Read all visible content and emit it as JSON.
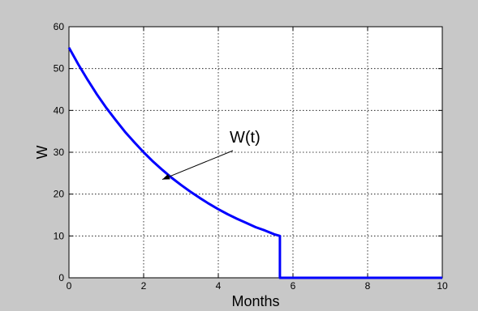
{
  "colors": {
    "figure_background": "#c8c8c8",
    "axes_background": "#ffffff",
    "series_line": "#0000ff",
    "grid": "#000000"
  },
  "chart_data": {
    "type": "line",
    "title": "",
    "xlabel": "Months",
    "ylabel": "W",
    "xlim": [
      0,
      10
    ],
    "ylim": [
      0,
      60
    ],
    "xticks": [
      "0",
      "2",
      "4",
      "6",
      "8",
      "10"
    ],
    "yticks": [
      "0",
      "10",
      "20",
      "30",
      "40",
      "50",
      "60"
    ],
    "grid": true,
    "grid_style": "dotted",
    "series": [
      {
        "color": "#0000ff",
        "points": [
          [
            0.0,
            55.0
          ],
          [
            0.25,
            51.0
          ],
          [
            0.5,
            47.3
          ],
          [
            0.75,
            43.8
          ],
          [
            1.0,
            40.6
          ],
          [
            1.25,
            37.7
          ],
          [
            1.5,
            34.9
          ],
          [
            1.75,
            32.4
          ],
          [
            2.0,
            30.0
          ],
          [
            2.25,
            27.8
          ],
          [
            2.5,
            25.8
          ],
          [
            2.75,
            23.9
          ],
          [
            3.0,
            22.2
          ],
          [
            3.25,
            20.6
          ],
          [
            3.5,
            19.1
          ],
          [
            3.75,
            17.7
          ],
          [
            4.0,
            16.4
          ],
          [
            4.25,
            15.2
          ],
          [
            4.5,
            14.1
          ],
          [
            4.75,
            13.1
          ],
          [
            5.0,
            12.1
          ],
          [
            5.25,
            11.3
          ],
          [
            5.5,
            10.4
          ],
          [
            5.65,
            10.0
          ],
          [
            5.65,
            0.0
          ],
          [
            10.0,
            0.0
          ]
        ]
      }
    ],
    "annotations": [
      {
        "text": "W(t)",
        "arrow_to": [
          2.5,
          23.5
        ]
      }
    ]
  }
}
